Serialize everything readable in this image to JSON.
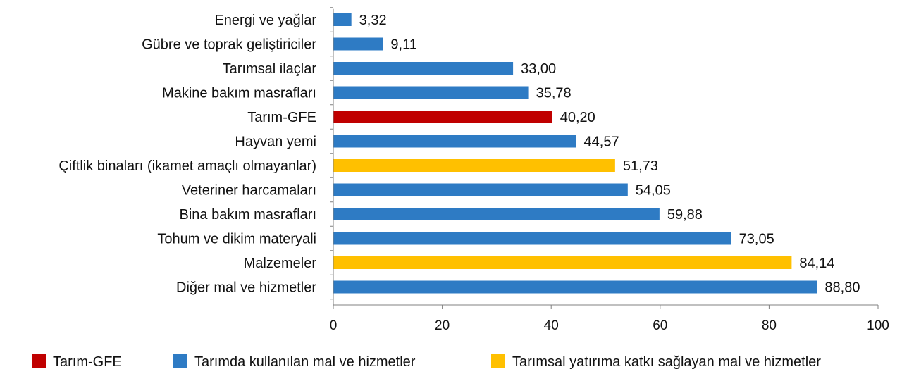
{
  "chart_data": {
    "type": "bar",
    "orientation": "horizontal",
    "categories": [
      "Energi ve yağlar",
      "Gübre ve toprak geliştiriciler",
      "Tarımsal ilaçlar",
      "Makine bakım masrafları",
      "Tarım-GFE",
      "Hayvan yemi",
      "Çiftlik binaları (ikamet amaçlı olmayanlar)",
      "Veteriner harcamaları",
      "Bina bakım masrafları",
      "Tohum ve dikim materyali",
      "Malzemeler",
      "Diğer mal ve hizmetler"
    ],
    "values": [
      3.32,
      9.11,
      33.0,
      35.78,
      40.2,
      44.57,
      51.73,
      54.05,
      59.88,
      73.05,
      84.14,
      88.8
    ],
    "value_labels": [
      "3,32",
      "9,11",
      "33,00",
      "35,78",
      "40,20",
      "44,57",
      "51,73",
      "54,05",
      "59,88",
      "73,05",
      "84,14",
      "88,80"
    ],
    "groups": [
      1,
      1,
      1,
      1,
      0,
      1,
      2,
      1,
      1,
      1,
      2,
      1
    ],
    "legend": [
      {
        "name": "Tarım-GFE",
        "color": "#c00000"
      },
      {
        "name": "Tarımda kullanılan mal ve hizmetler",
        "color": "#2e7bc4"
      },
      {
        "name": "Tarımsal yatırıma katkı sağlayan mal ve hizmetler",
        "color": "#ffc000"
      }
    ],
    "xlim": [
      0,
      100
    ],
    "xticks": [
      0,
      20,
      40,
      60,
      80,
      100
    ],
    "grid": false,
    "legend_position": "bottom",
    "title": "",
    "xlabel": "",
    "ylabel": ""
  },
  "colors": {
    "axis": "#808080"
  }
}
